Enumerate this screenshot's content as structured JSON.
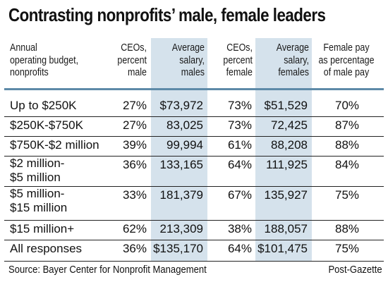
{
  "title": "Contrasting nonprofits’ male, female leaders",
  "columns": [
    "Annual\noperating budget,\nnonprofits",
    "CEOs,\npercent\nmale",
    "Average\nsalary,\nmales",
    "CEOs,\npercent\nfemale",
    "Average\nsalary,\nfemales",
    "Female pay\nas percentage\nof male pay"
  ],
  "rows": [
    [
      "Up to $250K",
      "27%",
      "$73,972",
      "73%",
      "$51,529",
      "70%"
    ],
    [
      "$250K-$750K",
      "27%",
      "83,025",
      "73%",
      "72,425",
      "87%"
    ],
    [
      "$750K-$2 million",
      "39%",
      "99,994",
      "61%",
      "88,208",
      "88%"
    ],
    [
      "$2 million-\n$5 million",
      "36%",
      "133,165",
      "64%",
      "111,925",
      "84%"
    ],
    [
      "$5 million-\n$15 million",
      "33%",
      "181,379",
      "67%",
      "135,927",
      "75%"
    ],
    [
      "$15 million+",
      "62%",
      "213,309",
      "38%",
      "188,057",
      "88%"
    ],
    [
      "All responses",
      "36%",
      "$135,170",
      "64%",
      "$101,475",
      "75%"
    ]
  ],
  "source": "Source: Bayer Center for Nonprofit Management",
  "credit": "Post-Gazette",
  "colors": {
    "shade": "#d5e2ec",
    "header_rule": "#5d8aa8",
    "row_rule": "#222222"
  },
  "chart_data": {
    "type": "table",
    "title": "Contrasting nonprofits’ male, female leaders",
    "categories": [
      "Up to $250K",
      "$250K-$750K",
      "$750K-$2 million",
      "$2 million-$5 million",
      "$5 million-$15 million",
      "$15 million+",
      "All responses"
    ],
    "series": [
      {
        "name": "CEOs, percent male",
        "values": [
          27,
          27,
          39,
          36,
          33,
          62,
          36
        ]
      },
      {
        "name": "Average salary, males",
        "values": [
          73972,
          83025,
          99994,
          133165,
          181379,
          213309,
          135170
        ]
      },
      {
        "name": "CEOs, percent female",
        "values": [
          73,
          73,
          61,
          64,
          67,
          38,
          64
        ]
      },
      {
        "name": "Average salary, females",
        "values": [
          51529,
          72425,
          88208,
          111925,
          135927,
          188057,
          101475
        ]
      },
      {
        "name": "Female pay as percentage of male pay",
        "values": [
          70,
          87,
          88,
          84,
          75,
          88,
          75
        ]
      }
    ]
  }
}
